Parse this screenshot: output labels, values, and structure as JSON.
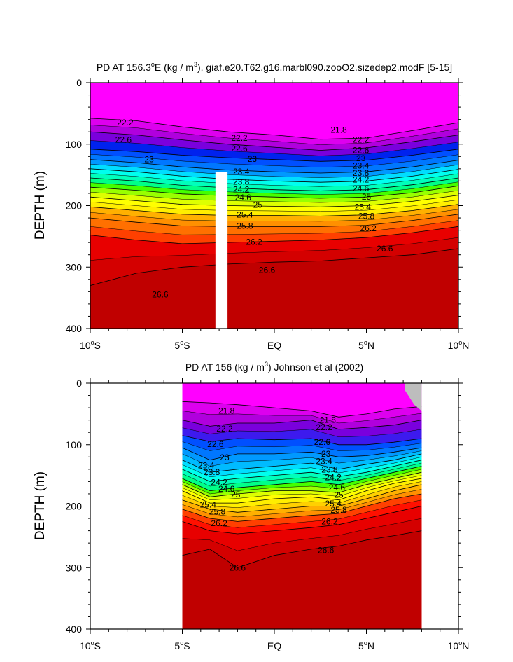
{
  "colors": {
    "levels": [
      "#ff00ff",
      "#dd00ee",
      "#b000dd",
      "#7a00dd",
      "#3d1aee",
      "#0022ee",
      "#0050ff",
      "#0077ff",
      "#0099ff",
      "#00bbff",
      "#00ddff",
      "#00ffee",
      "#00ffbb",
      "#00ff88",
      "#00ff44",
      "#44ff00",
      "#99ff00",
      "#ddff00",
      "#ffff00",
      "#ffee00",
      "#ffd000",
      "#ffb000",
      "#ff9000",
      "#ff7000",
      "#ff4000",
      "#ff1000",
      "#e80000",
      "#d40000",
      "#c00000"
    ],
    "land": "#bdbdbd",
    "contour_line": "#000000"
  },
  "chart_data": [
    {
      "type": "contour",
      "title": "PD AT 156.3",
      "title_sup1": "o",
      "title_mid": "E (kg / m",
      "title_sup2": "3",
      "title_end": "), giaf.e20.T62.g16.marbl090.zooO2.sizedep2.modF [5-15]",
      "ylabel": "DEPTH (m)",
      "xlim": [
        -10,
        10
      ],
      "ylim": [
        0,
        400
      ],
      "y_reversed": true,
      "y_ticks": [
        "0",
        "100",
        "200",
        "300",
        "400"
      ],
      "x_ticks": [
        {
          "pre": "10",
          "sup": "o",
          "post": "S"
        },
        {
          "pre": "5",
          "sup": "o",
          "post": "S"
        },
        {
          "pre": "EQ",
          "sup": "",
          "post": ""
        },
        {
          "pre": "5",
          "sup": "o",
          "post": "N"
        },
        {
          "pre": "10",
          "sup": "o",
          "post": "N"
        }
      ],
      "contour_levels": [
        21.8,
        21.9,
        22.0,
        22.1,
        22.2,
        22.3,
        22.4,
        22.5,
        22.6,
        22.7,
        22.8,
        22.9,
        23.0,
        23.2,
        23.4,
        23.6,
        23.8,
        24.0,
        24.2,
        24.4,
        24.6,
        24.8,
        25.0,
        25.2,
        25.4,
        25.6,
        25.8,
        26.0,
        26.2,
        26.4,
        26.6
      ],
      "isopycnal_depths": {
        "lon": [
          -10,
          -7.5,
          -5,
          -2.5,
          0,
          2.5,
          5,
          7.5,
          10
        ],
        "22.2": [
          58,
          62,
          72,
          80,
          85,
          92,
          90,
          78,
          65
        ],
        "22.6": [
          80,
          85,
          93,
          100,
          105,
          110,
          106,
          96,
          85
        ],
        "23": [
          108,
          112,
          118,
          122,
          125,
          128,
          126,
          118,
          108
        ],
        "23.4": [
          125,
          130,
          137,
          142,
          145,
          147,
          145,
          137,
          126
        ],
        "23.8": [
          140,
          145,
          152,
          157,
          160,
          162,
          160,
          152,
          141
        ],
        "24.2": [
          155,
          160,
          167,
          171,
          174,
          176,
          174,
          166,
          155
        ],
        "24.6": [
          170,
          175,
          181,
          184,
          186,
          188,
          186,
          179,
          168
        ],
        "25": [
          186,
          192,
          198,
          200,
          201,
          202,
          200,
          193,
          183
        ],
        "25.4": [
          202,
          208,
          214,
          216,
          216,
          217,
          215,
          208,
          198
        ],
        "25.8": [
          220,
          227,
          233,
          234,
          234,
          234,
          232,
          224,
          214
        ],
        "26.2": [
          248,
          256,
          262,
          260,
          258,
          256,
          252,
          244,
          234
        ],
        "26.6": [
          330,
          310,
          300,
          295,
          292,
          290,
          285,
          280,
          270
        ]
      },
      "labels": [
        {
          "text": "22.2",
          "lon": -8.1,
          "depth": 65
        },
        {
          "text": "22.6",
          "lon": -8.2,
          "depth": 93
        },
        {
          "text": "23",
          "lon": -6.8,
          "depth": 125
        },
        {
          "text": "26.6",
          "lon": -6.2,
          "depth": 345
        },
        {
          "text": "21.8",
          "lon": 3.5,
          "depth": 77
        },
        {
          "text": "22.2",
          "lon": -1.9,
          "depth": 90
        },
        {
          "text": "22.6",
          "lon": -1.9,
          "depth": 107
        },
        {
          "text": "23",
          "lon": -1.2,
          "depth": 124
        },
        {
          "text": "23.4",
          "lon": -1.8,
          "depth": 145
        },
        {
          "text": "23.8",
          "lon": -1.8,
          "depth": 161
        },
        {
          "text": "24.2",
          "lon": -1.8,
          "depth": 174
        },
        {
          "text": "24.6",
          "lon": -1.7,
          "depth": 187
        },
        {
          "text": "25",
          "lon": -0.9,
          "depth": 199
        },
        {
          "text": "25.4",
          "lon": -1.6,
          "depth": 215
        },
        {
          "text": "25.8",
          "lon": -1.6,
          "depth": 233
        },
        {
          "text": "26.2",
          "lon": -1.1,
          "depth": 259
        },
        {
          "text": "26.6",
          "lon": -0.4,
          "depth": 305
        },
        {
          "text": "22.2",
          "lon": 4.7,
          "depth": 93
        },
        {
          "text": "22.6",
          "lon": 4.7,
          "depth": 110
        },
        {
          "text": "23",
          "lon": 4.7,
          "depth": 123
        },
        {
          "text": "23.4",
          "lon": 4.7,
          "depth": 135
        },
        {
          "text": "23.8",
          "lon": 4.7,
          "depth": 147
        },
        {
          "text": "24.2",
          "lon": 4.7,
          "depth": 158
        },
        {
          "text": "24.6",
          "lon": 4.7,
          "depth": 172
        },
        {
          "text": "25",
          "lon": 5.0,
          "depth": 186
        },
        {
          "text": "25.4",
          "lon": 4.8,
          "depth": 202
        },
        {
          "text": "25.8",
          "lon": 5.0,
          "depth": 217
        },
        {
          "text": "26.2",
          "lon": 5.1,
          "depth": 237
        },
        {
          "text": "26.6",
          "lon": 6.0,
          "depth": 270
        }
      ]
    },
    {
      "type": "contour",
      "title": "PD AT 156 (kg / m",
      "title_sup1": "",
      "title_mid": "",
      "title_sup2": "3",
      "title_end": ") Johnson et al (2002)",
      "ylabel": "DEPTH (m)",
      "xlim": [
        -10,
        10
      ],
      "ylim": [
        0,
        400
      ],
      "y_reversed": true,
      "data_lon_range": [
        -5,
        8
      ],
      "y_ticks": [
        "0",
        "100",
        "200",
        "300",
        "400"
      ],
      "x_ticks": [
        {
          "pre": "10",
          "sup": "o",
          "post": "S"
        },
        {
          "pre": "5",
          "sup": "o",
          "post": "S"
        },
        {
          "pre": "EQ",
          "sup": "",
          "post": ""
        },
        {
          "pre": "5",
          "sup": "o",
          "post": "N"
        },
        {
          "pre": "10",
          "sup": "o",
          "post": "N"
        }
      ],
      "contour_levels": [
        21.8,
        22.2,
        22.6,
        23.0,
        23.4,
        23.8,
        24.2,
        24.6,
        25.0,
        25.4,
        25.8,
        26.2,
        26.6
      ],
      "isopycnal_depths": {
        "lon": [
          -5,
          -3.5,
          -2,
          0,
          2,
          3.5,
          5,
          6.5,
          8
        ],
        "21.8": [
          30,
          32,
          35,
          40,
          45,
          55,
          50,
          42,
          38
        ],
        "22.2": [
          60,
          70,
          65,
          65,
          60,
          75,
          72,
          68,
          60
        ],
        "22.6": [
          85,
          95,
          90,
          92,
          90,
          100,
          100,
          96,
          90
        ],
        "23": [
          105,
          125,
          115,
          115,
          112,
          120,
          118,
          112,
          105
        ],
        "23.4": [
          125,
          145,
          140,
          135,
          130,
          140,
          132,
          125,
          115
        ],
        "23.8": [
          140,
          160,
          155,
          150,
          145,
          152,
          145,
          135,
          125
        ],
        "24.2": [
          155,
          175,
          170,
          165,
          160,
          165,
          155,
          145,
          135
        ],
        "24.6": [
          165,
          185,
          180,
          175,
          175,
          178,
          165,
          155,
          145
        ],
        "25": [
          175,
          195,
          195,
          188,
          185,
          190,
          175,
          163,
          155
        ],
        "25.4": [
          190,
          205,
          210,
          205,
          200,
          200,
          188,
          175,
          165
        ],
        "25.8": [
          205,
          220,
          225,
          220,
          215,
          212,
          200,
          188,
          180
        ],
        "26.2": [
          225,
          240,
          245,
          240,
          235,
          230,
          220,
          210,
          200
        ],
        "26.6": [
          280,
          270,
          300,
          280,
          270,
          265,
          255,
          248,
          240
        ]
      },
      "labels": [
        {
          "text": "21.8",
          "lon": -2.6,
          "depth": 45
        },
        {
          "text": "22.2",
          "lon": -2.7,
          "depth": 74
        },
        {
          "text": "22.6",
          "lon": -3.2,
          "depth": 99
        },
        {
          "text": "23",
          "lon": -2.7,
          "depth": 121
        },
        {
          "text": "23.4",
          "lon": -3.7,
          "depth": 134
        },
        {
          "text": "23.8",
          "lon": -3.4,
          "depth": 145
        },
        {
          "text": "24.2",
          "lon": -3.0,
          "depth": 161
        },
        {
          "text": "24.6",
          "lon": -2.6,
          "depth": 172
        },
        {
          "text": "25",
          "lon": -2.1,
          "depth": 181
        },
        {
          "text": "25.4",
          "lon": -3.6,
          "depth": 198
        },
        {
          "text": "25.8",
          "lon": -3.1,
          "depth": 209
        },
        {
          "text": "26.2",
          "lon": -3.0,
          "depth": 228
        },
        {
          "text": "26.6",
          "lon": -2.0,
          "depth": 300
        },
        {
          "text": "21.8",
          "lon": 2.9,
          "depth": 60
        },
        {
          "text": "22.2",
          "lon": 2.7,
          "depth": 72
        },
        {
          "text": "22.6",
          "lon": 2.6,
          "depth": 96
        },
        {
          "text": "23",
          "lon": 2.8,
          "depth": 115
        },
        {
          "text": "23.4",
          "lon": 2.7,
          "depth": 127
        },
        {
          "text": "23.8",
          "lon": 3.0,
          "depth": 141
        },
        {
          "text": "24.2",
          "lon": 3.2,
          "depth": 153
        },
        {
          "text": "24.6",
          "lon": 3.4,
          "depth": 170
        },
        {
          "text": "25",
          "lon": 3.5,
          "depth": 182
        },
        {
          "text": "25.4",
          "lon": 3.2,
          "depth": 196
        },
        {
          "text": "25.8",
          "lon": 3.5,
          "depth": 206
        },
        {
          "text": "26.2",
          "lon": 3.0,
          "depth": 225
        },
        {
          "text": "26.6",
          "lon": 2.8,
          "depth": 272
        }
      ]
    }
  ]
}
